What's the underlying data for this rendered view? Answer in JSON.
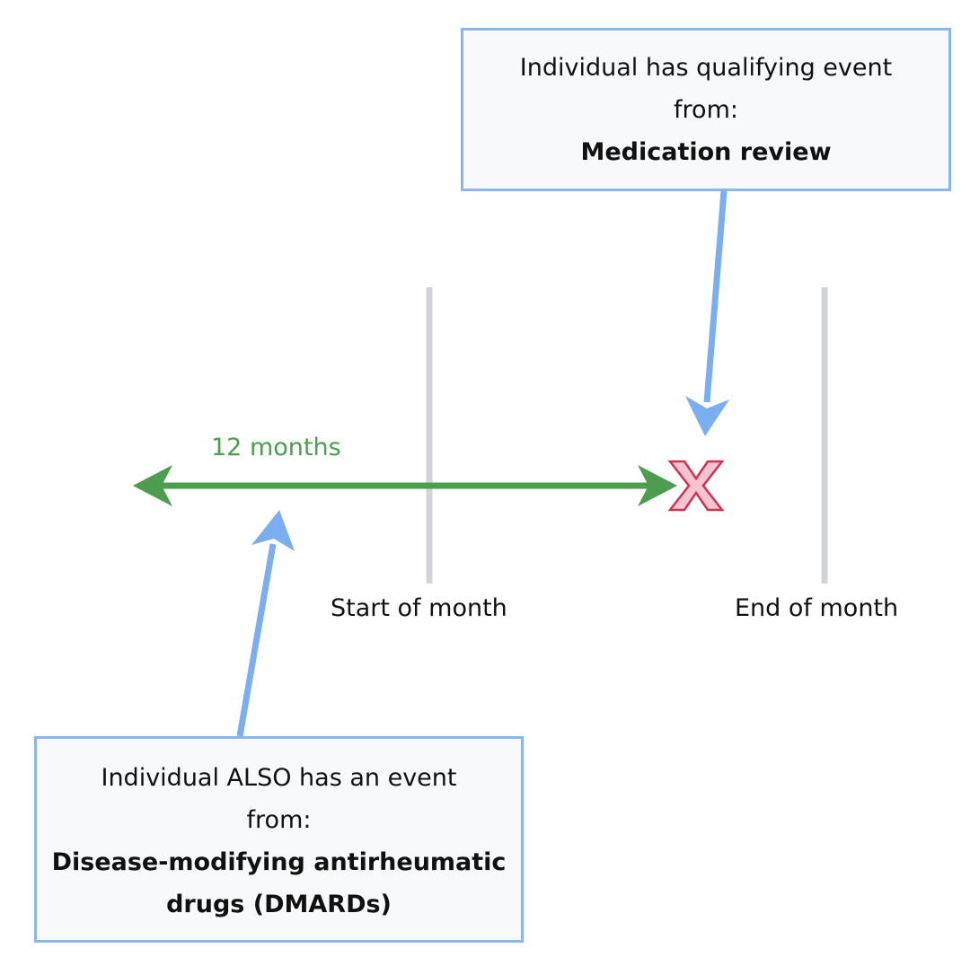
{
  "diagram": {
    "top_box": {
      "line1": "Individual has qualifying event from:",
      "line2": "Medication review"
    },
    "bottom_box": {
      "line1": "Individual ALSO has an event from:",
      "line2": "Disease-modifying antirheumatic drugs (DMARDs)"
    },
    "timeline": {
      "start_label": "Start of month",
      "end_label": "End of month",
      "lookback_label": "12 months"
    },
    "marker": {
      "icon": "cross-mark-icon"
    }
  },
  "colors": {
    "box_border": "#8ab6f0",
    "box_fill": "#f7f9fb",
    "arrow_blue": "#7aaef0",
    "arrow_green": "#4c9d4f",
    "marker_fill": "#f6c4d0",
    "marker_stroke": "#cc3355",
    "month_line": "#d2d4da"
  }
}
